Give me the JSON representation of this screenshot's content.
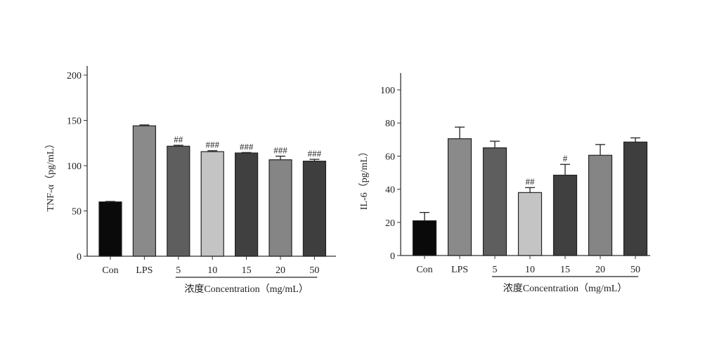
{
  "chart_data": [
    {
      "type": "bar",
      "ylabel": "TNF-α（pg/mL）",
      "xlabel": "浓度Concentration（mg/mL）",
      "categories": [
        "Con",
        "LPS",
        "5",
        "10",
        "15",
        "20",
        "50"
      ],
      "values": [
        60,
        144,
        121.5,
        115.5,
        114,
        106.5,
        105
      ],
      "errors": [
        0.5,
        1,
        1,
        1,
        0.5,
        4,
        2
      ],
      "annotations": [
        "",
        "",
        "##",
        "###",
        "###",
        "###",
        "###"
      ],
      "yticks": [
        "0",
        "50",
        "100",
        "150",
        "200"
      ],
      "ylim": [
        0,
        210
      ],
      "colors": [
        "#0a0a0a",
        "#8a8a8a",
        "#5e5e5e",
        "#c4c4c4",
        "#404040",
        "#858585",
        "#3e3e3e"
      ]
    },
    {
      "type": "bar",
      "ylabel": "IL-6（pg/mL）",
      "xlabel": "浓度Concentration（mg/mL）",
      "categories": [
        "Con",
        "LPS",
        "5",
        "10",
        "15",
        "20",
        "50"
      ],
      "values": [
        21,
        70.5,
        65,
        38,
        48.5,
        60.5,
        68.5
      ],
      "errors": [
        5,
        7,
        4,
        3,
        6.5,
        6.5,
        2.5
      ],
      "annotations": [
        "",
        "",
        "",
        "##",
        "#",
        "",
        ""
      ],
      "yticks": [
        "0",
        "20",
        "40",
        "60",
        "80",
        "100"
      ],
      "ylim": [
        0,
        110
      ],
      "colors": [
        "#0a0a0a",
        "#8a8a8a",
        "#5e5e5e",
        "#c4c4c4",
        "#404040",
        "#858585",
        "#3e3e3e"
      ]
    }
  ]
}
